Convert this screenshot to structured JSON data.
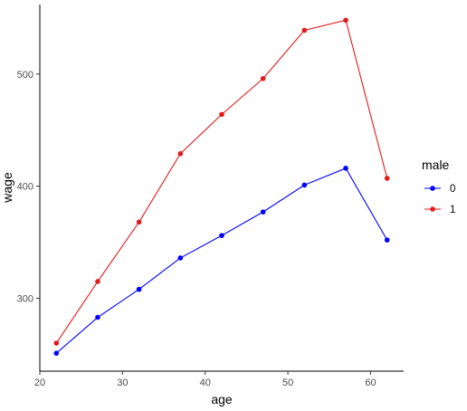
{
  "chart_data": {
    "type": "line",
    "title": "",
    "xlabel": "age",
    "ylabel": "wage",
    "xlim": [
      20,
      64
    ],
    "ylim": [
      235,
      562
    ],
    "x_ticks": [
      20,
      30,
      40,
      50,
      60
    ],
    "y_ticks": [
      300,
      400,
      500
    ],
    "grid": false,
    "legend": {
      "title": "male",
      "position": "right"
    },
    "x": [
      22,
      27,
      32,
      37,
      42,
      47,
      52,
      57,
      62
    ],
    "series": [
      {
        "name": "0",
        "color": "#0000ff",
        "values": [
          251,
          283,
          308,
          336,
          356,
          377,
          401,
          416,
          352
        ]
      },
      {
        "name": "1",
        "color": "#e31a1c",
        "values": [
          260,
          315,
          368,
          429,
          464,
          496,
          539,
          548,
          407
        ]
      }
    ]
  }
}
